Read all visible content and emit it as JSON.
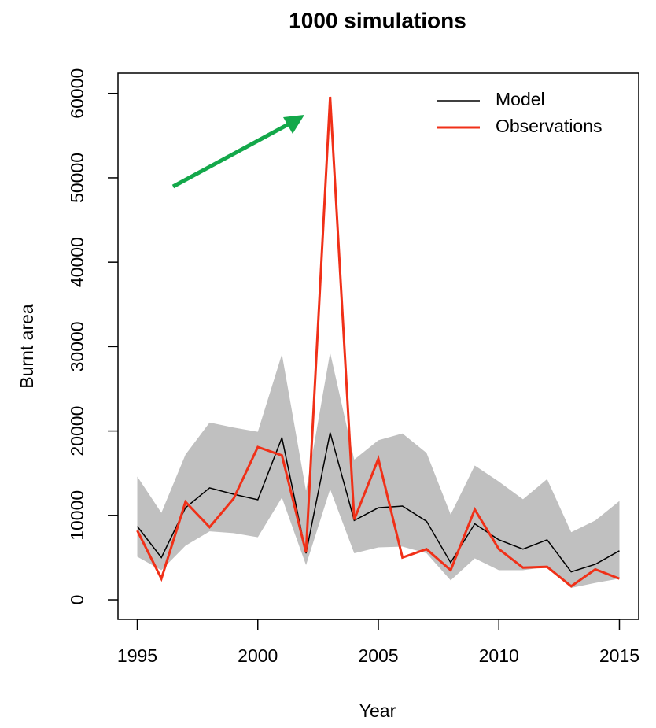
{
  "chart_data": {
    "type": "line",
    "title": "1000 simulations",
    "x_label": "Year",
    "y_label": "Burnt area",
    "x": [
      1995,
      1996,
      1997,
      1998,
      1999,
      2000,
      2001,
      2002,
      2003,
      2004,
      2005,
      2006,
      2007,
      2008,
      2009,
      2010,
      2011,
      2012,
      2013,
      2014,
      2015
    ],
    "band": {
      "color": "#c0c0c0",
      "upper": [
        14600,
        10300,
        17200,
        21000,
        20400,
        19900,
        29100,
        12900,
        29300,
        16600,
        18900,
        19700,
        17400,
        10100,
        15900,
        14000,
        11900,
        14300,
        8000,
        9400,
        11700
      ],
      "lower": [
        5100,
        3500,
        6400,
        8100,
        7900,
        7400,
        12100,
        4100,
        13100,
        5500,
        6200,
        6300,
        5500,
        2300,
        4900,
        3500,
        3500,
        3900,
        1400,
        2000,
        2500
      ]
    },
    "series": [
      {
        "name": "Model",
        "color": "#000000",
        "width": 1.5,
        "values": [
          8700,
          5000,
          10900,
          13250,
          12500,
          11850,
          19200,
          5500,
          19800,
          9400,
          10900,
          11100,
          9300,
          4400,
          9000,
          7100,
          6000,
          7100,
          3300,
          4200,
          5800
        ]
      },
      {
        "name": "Observations",
        "color": "#f03018",
        "width": 3,
        "values": [
          8200,
          2500,
          11600,
          8600,
          12000,
          18100,
          17100,
          5600,
          59600,
          9500,
          16700,
          5000,
          6000,
          3500,
          10700,
          6000,
          3800,
          3900,
          1600,
          3600,
          2500
        ]
      }
    ],
    "xlim": [
      1994.2,
      2015.8
    ],
    "xticks": [
      1995,
      2000,
      2005,
      2010,
      2015
    ],
    "ylim": [
      -2330,
      62400
    ],
    "yticks": [
      0,
      10000,
      20000,
      30000,
      40000,
      50000,
      60000
    ],
    "legend": "topright"
  }
}
